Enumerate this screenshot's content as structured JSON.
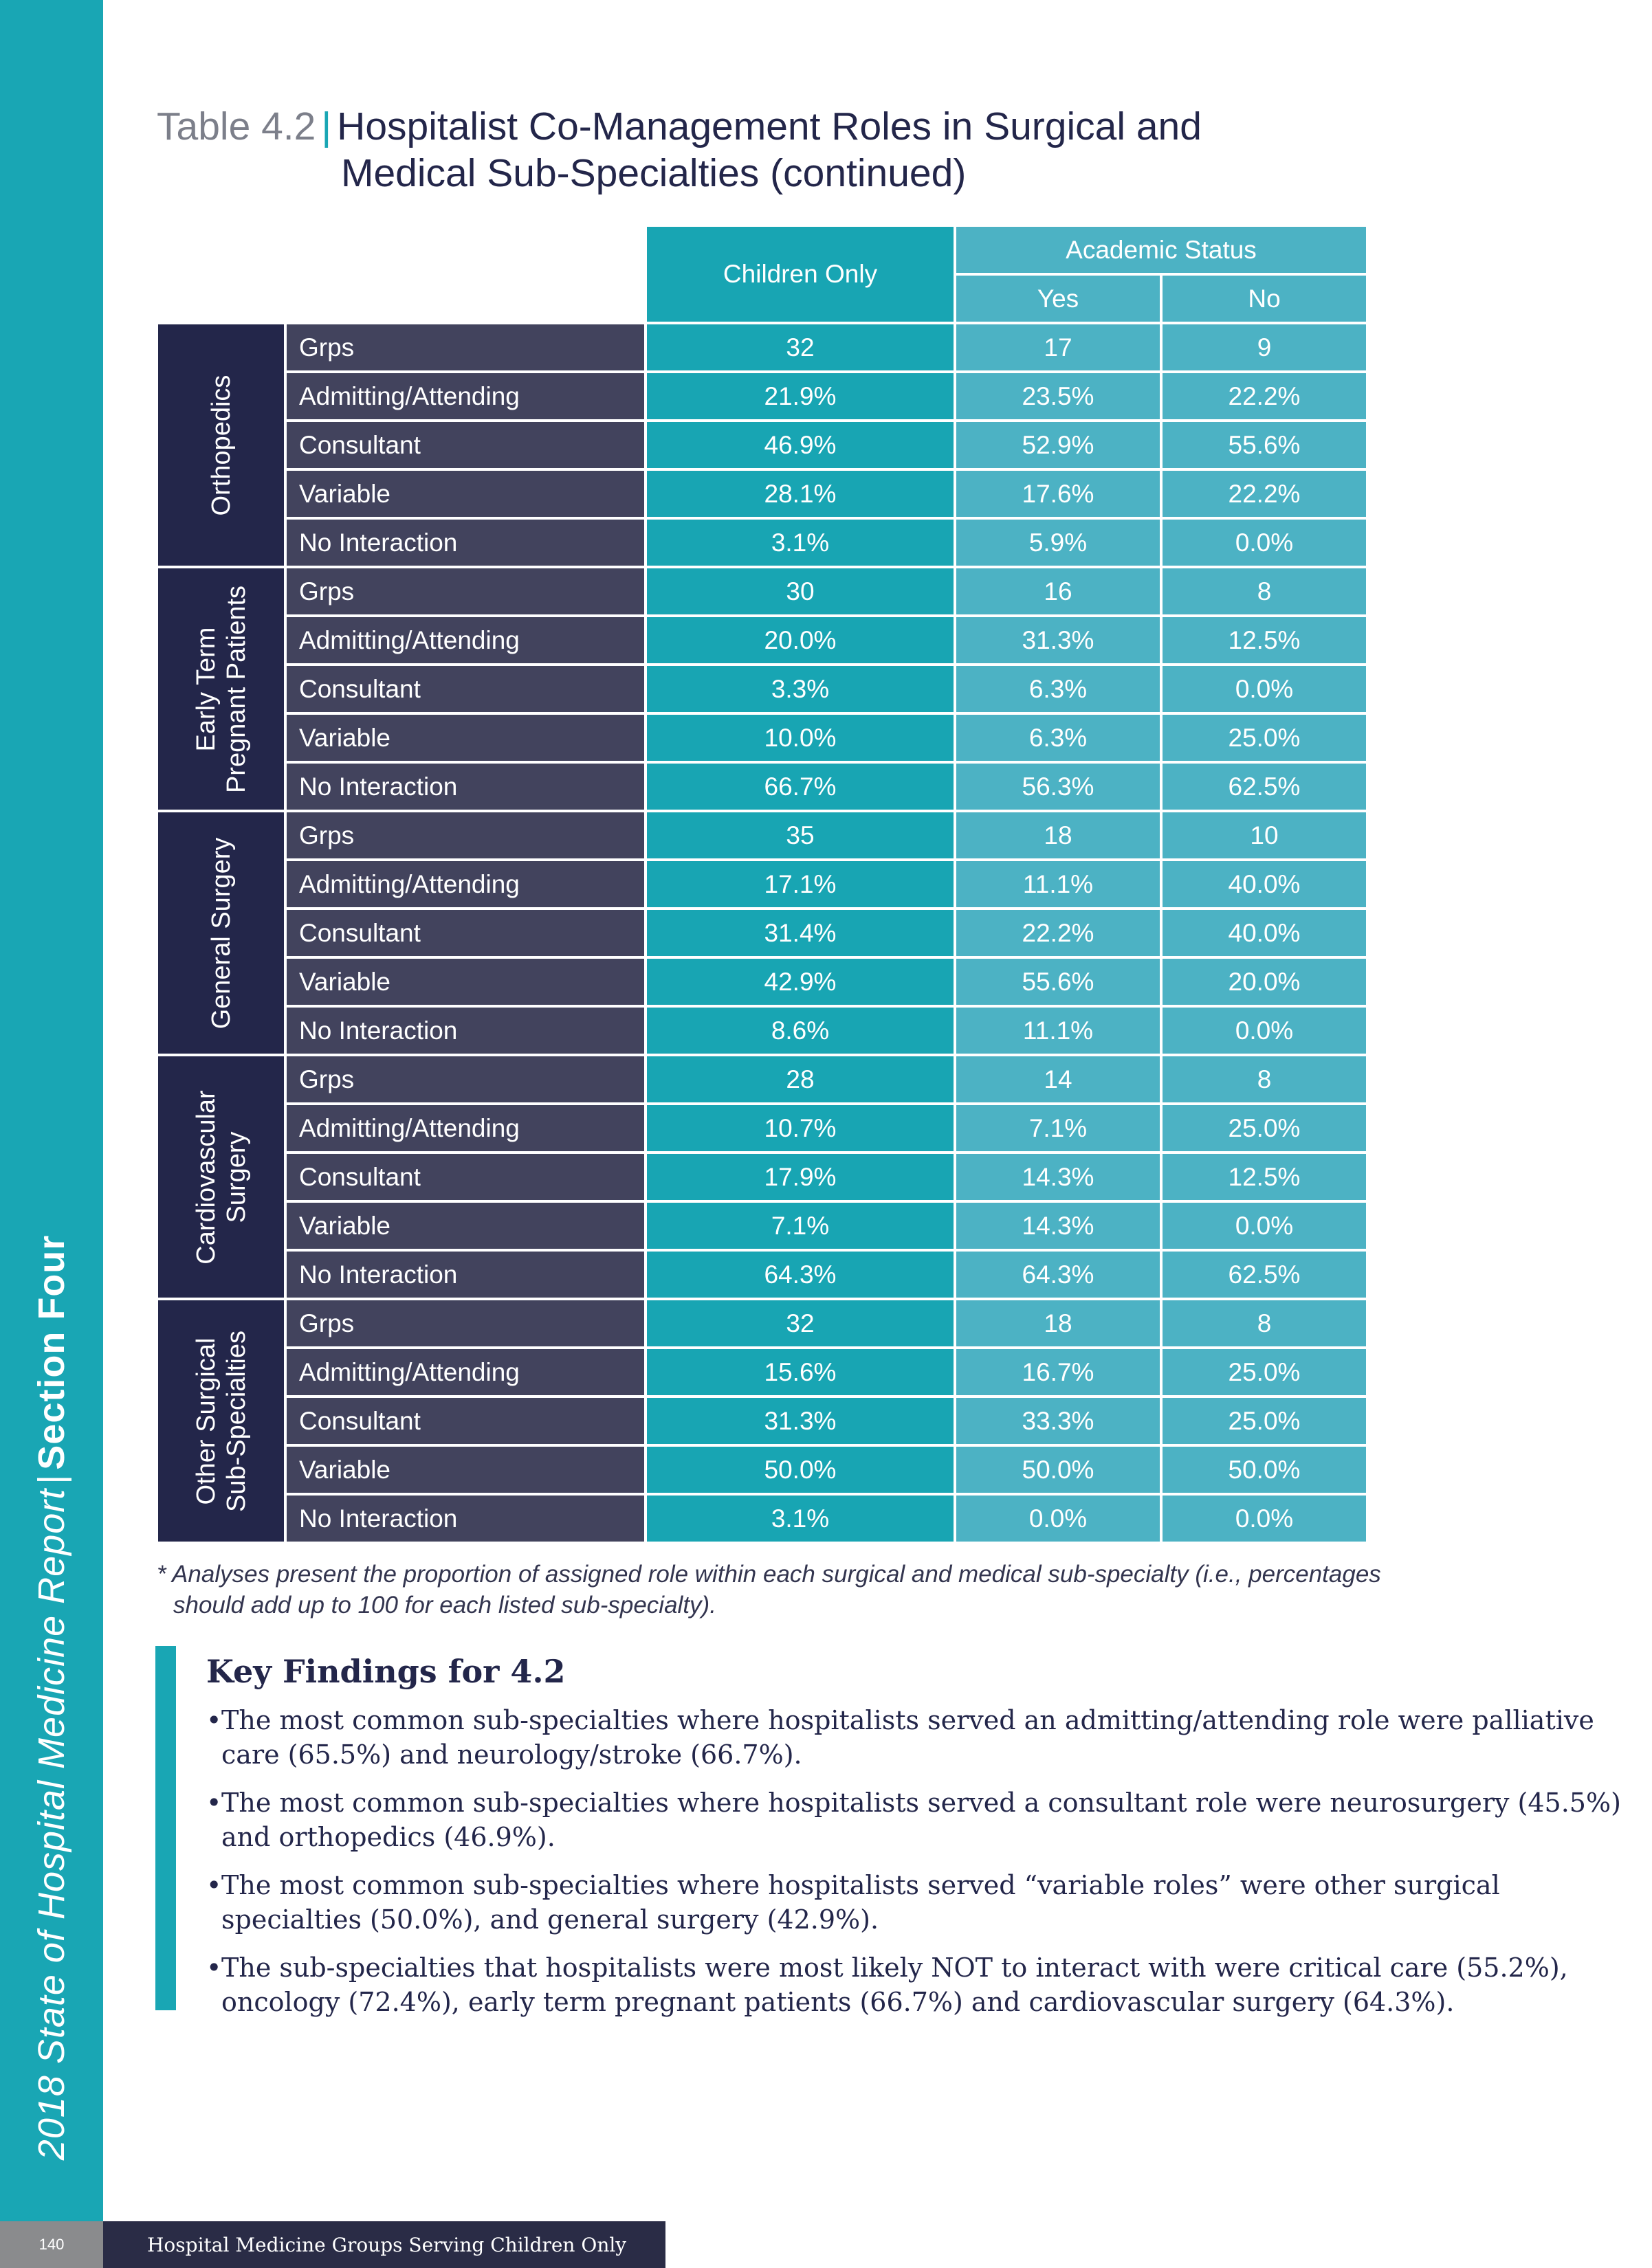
{
  "side": {
    "report": "2018 State of Hospital Medicine Report",
    "separator": "|",
    "section": "Section Four"
  },
  "footer": {
    "page_number": "140",
    "text": "Hospital  Medicine Groups Serving Children Only"
  },
  "title": {
    "label": "Table 4.2",
    "separator": "|",
    "line1": "Hospitalist Co-Management Roles in Surgical and",
    "line2": "Medical Sub-Specialties (continued)"
  },
  "table": {
    "col_children": "Children Only",
    "col_academic": "Academic Status",
    "col_yes": "Yes",
    "col_no": "No",
    "groups": [
      {
        "name": "Orthopedics",
        "rows": [
          {
            "label": "Grps",
            "children": "32",
            "yes": "17",
            "no": "9"
          },
          {
            "label": "Admitting/Attending",
            "children": "21.9%",
            "yes": "23.5%",
            "no": "22.2%"
          },
          {
            "label": "Consultant",
            "children": "46.9%",
            "yes": "52.9%",
            "no": "55.6%"
          },
          {
            "label": "Variable",
            "children": "28.1%",
            "yes": "17.6%",
            "no": "22.2%"
          },
          {
            "label": "No Interaction",
            "children": "3.1%",
            "yes": "5.9%",
            "no": "0.0%"
          }
        ]
      },
      {
        "name": "Early Term\nPregnant Patients",
        "rows": [
          {
            "label": "Grps",
            "children": "30",
            "yes": "16",
            "no": "8"
          },
          {
            "label": "Admitting/Attending",
            "children": "20.0%",
            "yes": "31.3%",
            "no": "12.5%"
          },
          {
            "label": "Consultant",
            "children": "3.3%",
            "yes": "6.3%",
            "no": "0.0%"
          },
          {
            "label": "Variable",
            "children": "10.0%",
            "yes": "6.3%",
            "no": "25.0%"
          },
          {
            "label": "No Interaction",
            "children": "66.7%",
            "yes": "56.3%",
            "no": "62.5%"
          }
        ]
      },
      {
        "name": "General Surgery",
        "rows": [
          {
            "label": "Grps",
            "children": "35",
            "yes": "18",
            "no": "10"
          },
          {
            "label": "Admitting/Attending",
            "children": "17.1%",
            "yes": "11.1%",
            "no": "40.0%"
          },
          {
            "label": "Consultant",
            "children": "31.4%",
            "yes": "22.2%",
            "no": "40.0%"
          },
          {
            "label": "Variable",
            "children": "42.9%",
            "yes": "55.6%",
            "no": "20.0%"
          },
          {
            "label": "No Interaction",
            "children": "8.6%",
            "yes": "11.1%",
            "no": "0.0%"
          }
        ]
      },
      {
        "name": "Cardiovascular\nSurgery",
        "rows": [
          {
            "label": "Grps",
            "children": "28",
            "yes": "14",
            "no": "8"
          },
          {
            "label": "Admitting/Attending",
            "children": "10.7%",
            "yes": "7.1%",
            "no": "25.0%"
          },
          {
            "label": "Consultant",
            "children": "17.9%",
            "yes": "14.3%",
            "no": "12.5%"
          },
          {
            "label": "Variable",
            "children": "7.1%",
            "yes": "14.3%",
            "no": "0.0%"
          },
          {
            "label": "No Interaction",
            "children": "64.3%",
            "yes": "64.3%",
            "no": "62.5%"
          }
        ]
      },
      {
        "name": "Other Surgical\nSub-Specialties",
        "rows": [
          {
            "label": "Grps",
            "children": "32",
            "yes": "18",
            "no": "8"
          },
          {
            "label": "Admitting/Attending",
            "children": "15.6%",
            "yes": "16.7%",
            "no": "25.0%"
          },
          {
            "label": "Consultant",
            "children": "31.3%",
            "yes": "33.3%",
            "no": "25.0%"
          },
          {
            "label": "Variable",
            "children": "50.0%",
            "yes": "50.0%",
            "no": "50.0%"
          },
          {
            "label": "No Interaction",
            "children": "3.1%",
            "yes": "0.0%",
            "no": "0.0%"
          }
        ]
      }
    ]
  },
  "footnote": {
    "line1": "* Analyses present the proportion of assigned role within each surgical and medical sub-specialty (i.e., percentages",
    "line2": "should add up to 100 for each listed sub-specialty)."
  },
  "key_findings": {
    "title": "Key Findings for 4.2",
    "bullet": "•",
    "items": [
      "The most common sub-specialties where hospitalists served an admitting/attending role were palliative care (65.5%) and neurology/stroke (66.7%).",
      "The most common  sub-specialties where hospitalists served a consultant role were neurosurgery (45.5%) and orthopedics (46.9%).",
      "The most common sub-specialties where hospitalists served “variable roles” were other surgical specialties (50.0%), and general surgery (42.9%).",
      "The sub-specialties that hospitalists were most likely NOT to interact with were critical care (55.2%), oncology (72.4%), early term pregnant patients (66.7%) and cardiovascular surgery (64.3%)."
    ]
  }
}
